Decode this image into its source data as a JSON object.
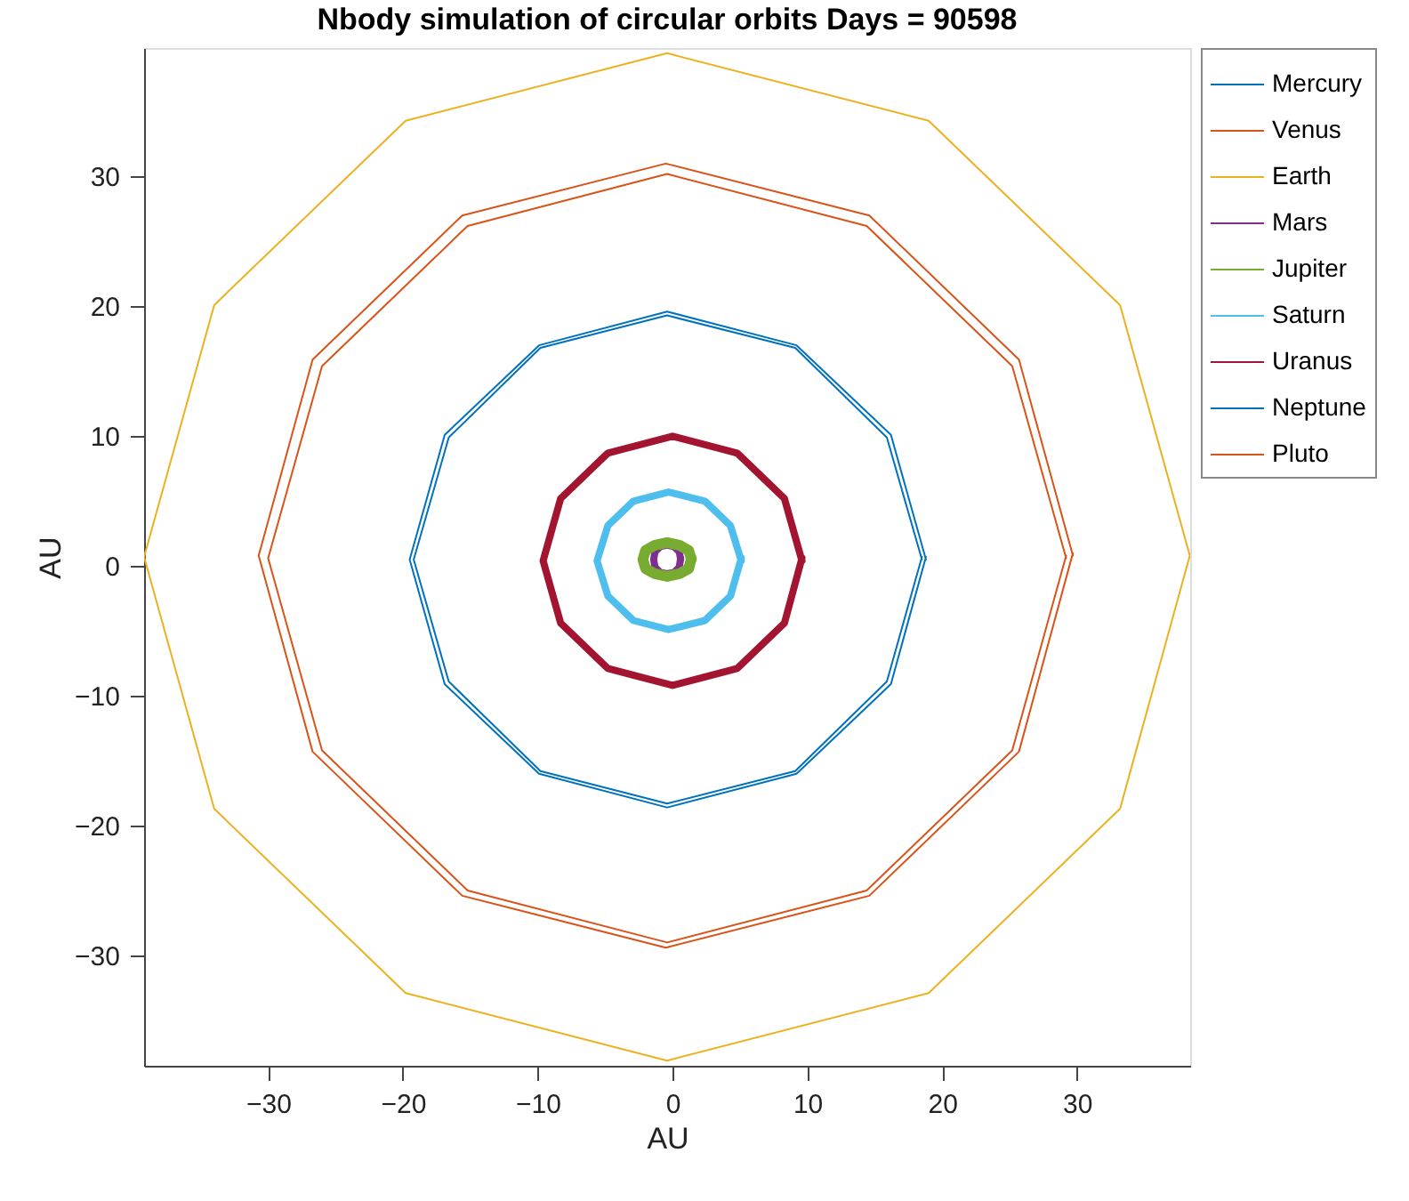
{
  "chart_data": {
    "type": "line",
    "title": "Nbody simulation of circular orbits Days = 90598",
    "xlabel": "AU",
    "ylabel": "AU",
    "xlim": [
      -39.2,
      38.4
    ],
    "ylim": [
      -38.5,
      39.9
    ],
    "xticks": [
      -30,
      -20,
      -10,
      0,
      10,
      20,
      30
    ],
    "yticks": [
      -30,
      -20,
      -10,
      0,
      10,
      20,
      30
    ],
    "grid": false,
    "legend": "top right",
    "marker": "none",
    "line_style": "solid",
    "series": [
      {
        "name": "Mercury",
        "color": "#0072bd",
        "x": [
          18.5,
          15.9,
          9.1,
          -0.4,
          -9.8,
          -16.6,
          -19.2,
          -16.6,
          -9.8,
          -0.4,
          9.1,
          15.9,
          18.5
        ],
        "values": [
          0.5,
          9.9,
          16.8,
          19.3,
          16.8,
          9.9,
          0.5,
          -8.9,
          -15.8,
          -18.3,
          -15.8,
          -8.9,
          0.7
        ]
      },
      {
        "name": "Venus",
        "color": "#d95319",
        "x": [
          29.2,
          25.2,
          14.4,
          -0.4,
          -15.2,
          -26.0,
          -30.0,
          -26.0,
          -15.2,
          -0.4,
          14.4,
          25.2,
          29.2
        ],
        "values": [
          0.6,
          15.4,
          26.2,
          30.2,
          26.2,
          15.4,
          0.6,
          -14.2,
          -25.0,
          -29.0,
          -25.0,
          -14.2,
          0.8
        ]
      },
      {
        "name": "Earth",
        "color": "#edb120",
        "x": [
          38.4,
          33.2,
          19.0,
          -0.4,
          -19.8,
          -34.0,
          -39.2,
          -34.0,
          -19.8,
          -0.4,
          19.0,
          33.2,
          38.4
        ],
        "values": [
          0.7,
          20.1,
          34.3,
          39.5,
          34.3,
          20.1,
          0.7,
          -18.7,
          -32.9,
          -38.1,
          -32.9,
          -18.7,
          0.9
        ]
      },
      {
        "name": "Mars",
        "color": "#7e2f8e",
        "x": [
          0.6,
          0.5,
          0.1,
          -0.4,
          -0.9,
          -1.3,
          -1.4,
          -1.3,
          -0.9,
          -0.4,
          0.1,
          0.5,
          0.6
        ],
        "values": [
          0.5,
          1.1,
          1.5,
          1.6,
          1.5,
          1.1,
          0.5,
          -0.1,
          -0.5,
          -0.6,
          -0.5,
          -0.1,
          0.6
        ]
      },
      {
        "name": "Jupiter",
        "color": "#77ac30",
        "x": [
          1.4,
          1.2,
          0.5,
          -0.4,
          -1.3,
          -2.0,
          -2.2,
          -2.0,
          -1.3,
          -0.4,
          0.5,
          1.2,
          1.4
        ],
        "values": [
          0.5,
          1.2,
          1.6,
          1.8,
          1.6,
          1.2,
          0.5,
          -0.2,
          -0.6,
          -0.8,
          -0.6,
          -0.2,
          0.6
        ]
      },
      {
        "name": "Saturn",
        "color": "#4dbeee",
        "x": [
          5.1,
          4.3,
          2.4,
          -0.3,
          -2.9,
          -4.8,
          -5.6,
          -4.8,
          -2.9,
          -0.3,
          2.4,
          4.3,
          5.1
        ],
        "values": [
          0.4,
          3.1,
          5.0,
          5.7,
          5.0,
          3.1,
          0.4,
          -2.3,
          -4.2,
          -4.9,
          -4.2,
          -2.3,
          0.6
        ]
      },
      {
        "name": "Uranus",
        "color": "#a2142f",
        "x": [
          9.6,
          8.3,
          4.8,
          0,
          -4.8,
          -8.3,
          -9.6,
          -8.3,
          -4.8,
          0,
          4.8,
          8.3,
          9.6
        ],
        "values": [
          0.4,
          5.2,
          8.7,
          10.0,
          8.7,
          5.2,
          0.4,
          -4.4,
          -7.9,
          -9.2,
          -7.9,
          -4.4,
          0.6
        ]
      },
      {
        "name": "Neptune",
        "color": "#0072bd",
        "x": [
          18.8,
          16.2,
          9.2,
          -0.4,
          -9.9,
          -16.9,
          -19.5,
          -16.9,
          -9.9,
          -0.4,
          9.2,
          16.2,
          18.8
        ],
        "values": [
          0.5,
          10.1,
          17.0,
          19.6,
          17.0,
          10.1,
          0.5,
          -9.1,
          -16.0,
          -18.6,
          -16.0,
          -9.1,
          0.7
        ]
      },
      {
        "name": "Pluto",
        "color": "#d95319",
        "x": [
          29.7,
          25.7,
          14.6,
          -0.5,
          -15.6,
          -26.7,
          -30.7,
          -26.7,
          -15.6,
          -0.5,
          14.6,
          25.7,
          29.7
        ],
        "values": [
          0.8,
          15.9,
          27.0,
          31.0,
          27.0,
          15.9,
          0.8,
          -14.3,
          -25.4,
          -29.4,
          -25.4,
          -14.3,
          1.0
        ]
      }
    ]
  }
}
